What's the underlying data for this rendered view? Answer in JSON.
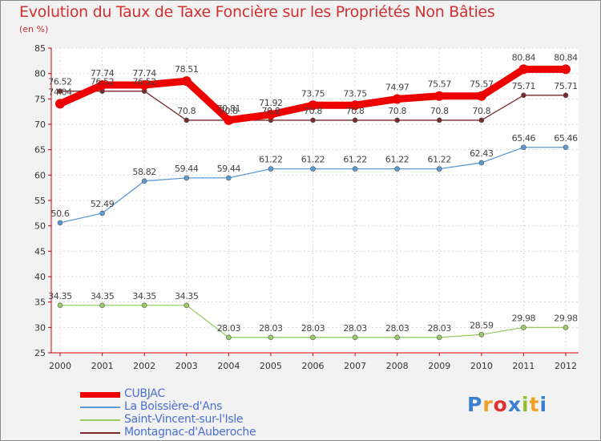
{
  "chart_data": {
    "type": "line",
    "title": "Evolution du Taux de Taxe Foncière sur les Propriétés Non Bâties",
    "ylabel": "(en %)",
    "xlabel": "",
    "ylim": [
      25,
      85
    ],
    "yticks": [
      25,
      30,
      35,
      40,
      45,
      50,
      55,
      60,
      65,
      70,
      75,
      80,
      85
    ],
    "categories": [
      "2000",
      "2001",
      "2002",
      "2003",
      "2004",
      "2005",
      "2006",
      "2007",
      "2008",
      "2009",
      "2010",
      "2011",
      "2012"
    ],
    "series": [
      {
        "name": "CUBJAC",
        "color": "#ee0000",
        "values": [
          74.04,
          77.74,
          77.74,
          78.51,
          70.81,
          71.92,
          73.75,
          73.75,
          74.97,
          75.57,
          75.57,
          80.84,
          80.84
        ],
        "labels": [
          "74.04",
          "77.74",
          "77.74",
          "78.51",
          "70.81",
          "71.92",
          "73.75",
          "73.75",
          "74.97",
          "75.57",
          "75.57",
          "80.84",
          "80.84"
        ]
      },
      {
        "name": "La Boissière-d'Ans",
        "color": "#5b9bd5",
        "values": [
          50.6,
          52.49,
          58.82,
          59.44,
          59.44,
          61.22,
          61.22,
          61.22,
          61.22,
          61.22,
          62.43,
          65.46,
          65.46
        ],
        "labels": [
          "50.6",
          "52.49",
          "58.82",
          "59.44",
          "59.44",
          "61.22",
          "61.22",
          "61.22",
          "61.22",
          "61.22",
          "62.43",
          "65.46",
          "65.46"
        ]
      },
      {
        "name": "Saint-Vincent-sur-l'Isle",
        "color": "#99cc66",
        "values": [
          34.35,
          34.35,
          34.35,
          34.35,
          28.03,
          28.03,
          28.03,
          28.03,
          28.03,
          28.03,
          28.59,
          29.98,
          29.98
        ],
        "labels": [
          "34.35",
          "34.35",
          "34.35",
          "34.35",
          "28.03",
          "28.03",
          "28.03",
          "28.03",
          "28.03",
          "28.03",
          "28.59",
          "29.98",
          "29.98"
        ]
      },
      {
        "name": "Montagnac-d'Auberoche",
        "color": "#7a2a2a",
        "values": [
          76.52,
          76.52,
          76.52,
          70.8,
          70.8,
          70.8,
          70.8,
          70.8,
          70.8,
          70.8,
          70.8,
          75.71,
          75.71
        ],
        "labels": [
          "76.52",
          "76.52",
          "76.52",
          "70.8",
          "70.8",
          "70.8",
          "70.8",
          "70.8",
          "70.8",
          "70.8",
          "70.8",
          "75.71",
          "75.71"
        ]
      }
    ],
    "grid": true,
    "legend": "bottom-left"
  },
  "logo": {
    "letters": [
      "P",
      "r",
      "o",
      "x",
      "i",
      "t",
      "i"
    ],
    "colors": [
      "#3a7fd0",
      "#f0a020",
      "#e03030",
      "#3a7fd0",
      "#90c030",
      "#f0a020",
      "#3a7fd0"
    ]
  }
}
